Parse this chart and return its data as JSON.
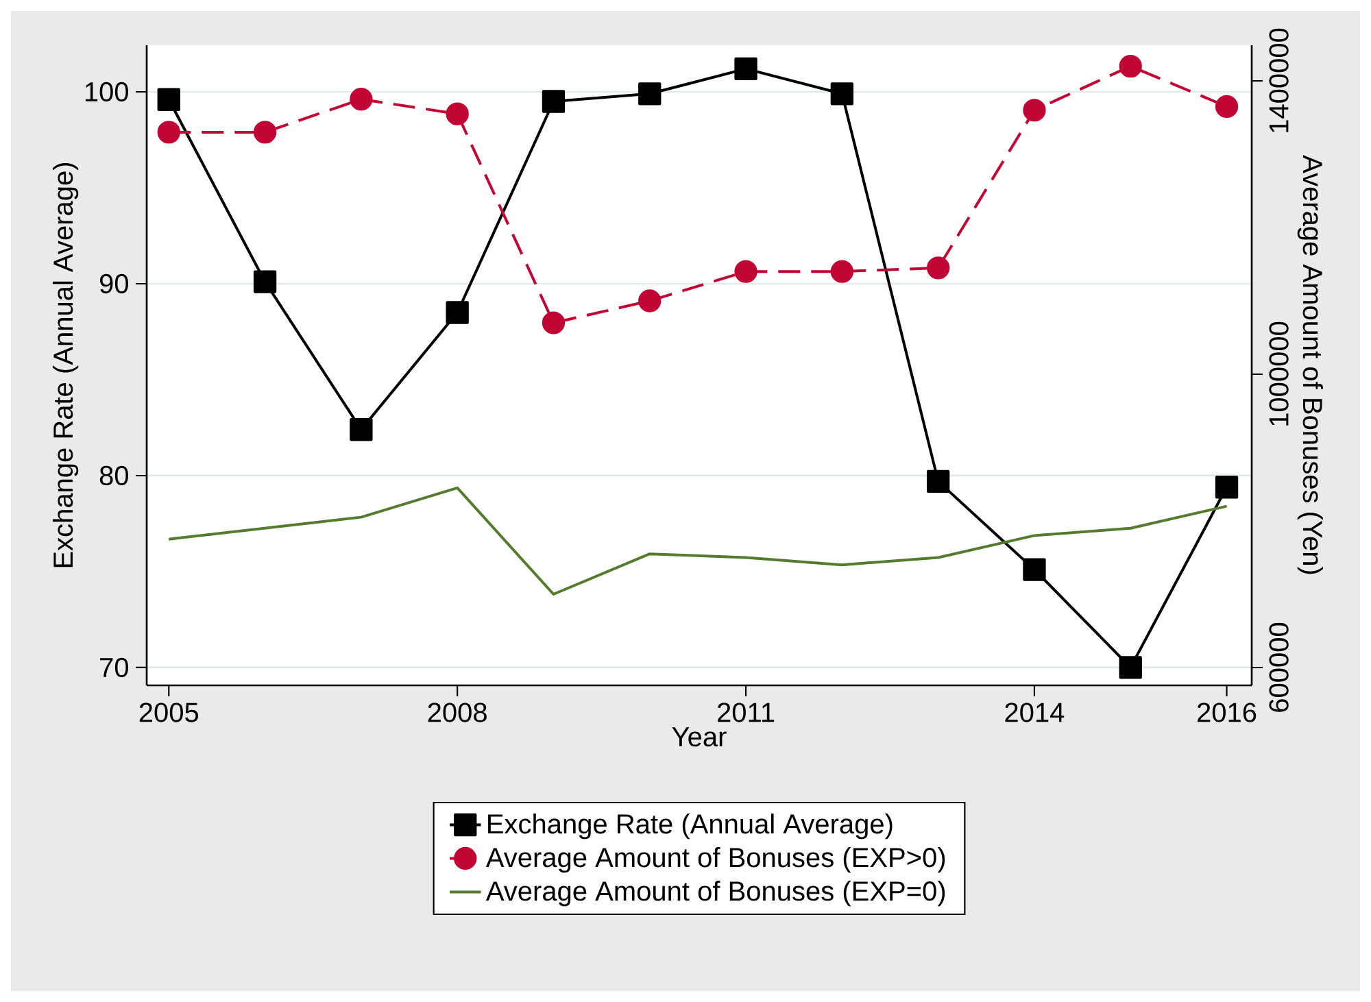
{
  "chart_data": {
    "type": "line",
    "xlabel": "Year",
    "ylabel": "Exchange Rate (Annual Average)",
    "y2label": "Average Amount of Bonuses (Yen)",
    "x": [
      2005,
      2006,
      2007,
      2008,
      2009,
      2010,
      2011,
      2012,
      2013,
      2014,
      2015,
      2016
    ],
    "series": [
      {
        "name": "Exchange Rate (Annual Average)",
        "color": "#000000",
        "marker": "square",
        "line_style": "solid",
        "values": [
          99.6,
          90.1,
          82.4,
          88.5,
          99.5,
          99.9,
          101.2,
          99.9,
          79.7,
          75.1,
          70.0,
          79.4
        ]
      },
      {
        "name": "Average Amount of Bonuses (EXP>0)",
        "color": "#c10534",
        "marker": "circle",
        "line_style": "dashed",
        "axis": "y2",
        "values": [
          1330000,
          1330000,
          1375000,
          1355000,
          1070000,
          1100000,
          1140000,
          1140000,
          1145000,
          1360000,
          1420000,
          1365000
        ]
      },
      {
        "name": "Average Amount of Bonuses (EXP=0)",
        "color": "#557b2f",
        "marker": "none",
        "line_style": "solid",
        "axis": "y2",
        "values": [
          775000,
          790000,
          805000,
          845000,
          700000,
          755000,
          750000,
          740000,
          750000,
          780000,
          790000,
          820000
        ]
      }
    ],
    "xlim": [
      2004.77,
      2016.26
    ],
    "xticks": [
      2005,
      2008,
      2011,
      2014,
      2016
    ],
    "ylim": [
      69.07,
      102.43
    ],
    "yticks": [
      70,
      80,
      90,
      100
    ],
    "y2lim": [
      575700,
      1448600
    ],
    "y2ticks": [
      600000,
      1000000,
      1400000
    ],
    "grid": "y",
    "legend": "bottom"
  }
}
